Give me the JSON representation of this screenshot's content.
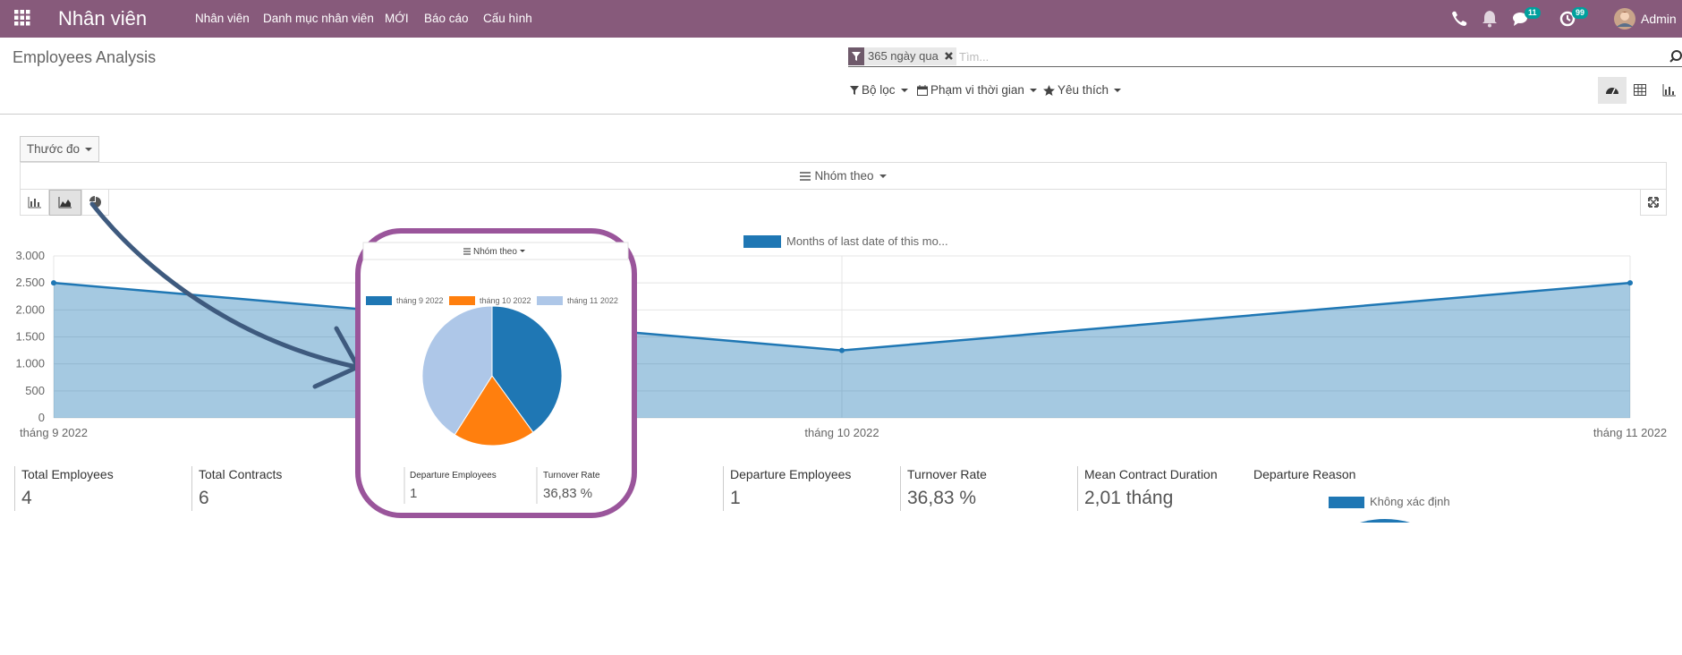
{
  "navbar": {
    "app_name": "Nhân viên",
    "menu": [
      "Nhân viên",
      "Danh mục nhân viên",
      "MỚI",
      "Báo cáo",
      "Cấu hình"
    ],
    "messages_badge": "11",
    "activities_badge": "99",
    "user": "Admin"
  },
  "control_panel": {
    "breadcrumb": "Employees Analysis",
    "facet": "365 ngày qua",
    "search_placeholder": "Tìm...",
    "filters": [
      "Bộ lọc",
      "Phạm vi thời gian",
      "Yêu thích"
    ]
  },
  "toolbar": {
    "measure": "Thước đo",
    "group_by": "Nhóm theo"
  },
  "chart_data": [
    {
      "type": "line",
      "area": true,
      "legend": "top",
      "grid": true,
      "categories": [
        "tháng 9 2022",
        "tháng 10 2022",
        "tháng 11 2022"
      ],
      "series": [
        {
          "name": "Months of last date of this mo...",
          "color": "#1f77b4",
          "values": [
            2500,
            1250,
            2500
          ]
        }
      ],
      "ylim": [
        0,
        3000
      ],
      "yticks": [
        0,
        500,
        {
          "value": 1000,
          "label": "1.000"
        },
        {
          "value": 1500,
          "label": "1.500"
        },
        {
          "value": 2000,
          "label": "2.000"
        },
        {
          "value": 2500,
          "label": "2.500"
        },
        {
          "value": 3000,
          "label": "3.000"
        }
      ]
    },
    {
      "type": "pie",
      "legend": "top",
      "categories": [
        "tháng 9 2022",
        "tháng 10 2022",
        "tháng 11 2022"
      ],
      "values": [
        40,
        19,
        41
      ],
      "colors": [
        "#1f77b4",
        "#ff7f0e",
        "#aec7e8"
      ]
    }
  ],
  "kpis": [
    {
      "label": "Total Employees",
      "value": "4"
    },
    {
      "label": "Total Contracts",
      "value": "6"
    },
    {
      "label": "Departure Employees",
      "value": "1"
    },
    {
      "label": "Turnover Rate",
      "value": "36,83 %"
    },
    {
      "label": "Mean Contract Duration",
      "value": "2,01 tháng"
    }
  ],
  "departure_reason": {
    "label": "Departure Reason",
    "legend": "Không xác định"
  },
  "inset": {
    "group_by": "Nhóm theo",
    "kpis": [
      {
        "label": "Departure Employees",
        "value": "1"
      },
      {
        "label": "Turnover Rate",
        "value": "36,83 %"
      }
    ]
  }
}
